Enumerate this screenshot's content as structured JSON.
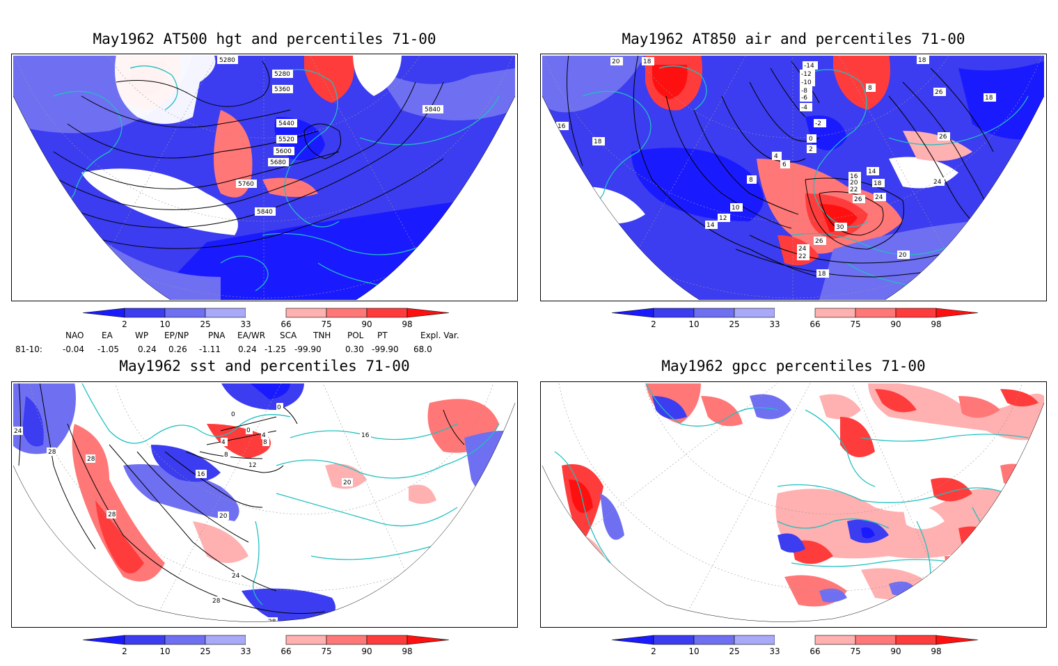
{
  "colors": {
    "blue_98": "#1a1aff",
    "blue_90": "#3c3cf0",
    "blue_75": "#6f6ff2",
    "blue_67": "#a9a9fa",
    "red_67": "#ffb0b0",
    "red_75": "#ff7777",
    "red_90": "#ff3c3c",
    "red_98": "#ff1010",
    "coast": "#20c0c0",
    "contour": "#000000"
  },
  "colorbar": {
    "ticks": [
      "2",
      "10",
      "25",
      "33",
      "66",
      "75",
      "90",
      "98"
    ]
  },
  "panels": [
    {
      "id": "at500",
      "title": "May1962 AT500 hgt and percentiles 71-00",
      "contour_labels": [
        "5280",
        "5280",
        "5360",
        "5440",
        "5520",
        "5600",
        "5680",
        "5760",
        "5840",
        "5840"
      ]
    },
    {
      "id": "at850",
      "title": "May1962 AT850 air and percentiles 71-00",
      "contour_labels": [
        "20",
        "18",
        "16",
        "18",
        "8",
        "10",
        "12",
        "14",
        "4",
        "6",
        "2",
        "0",
        "-2",
        "-4",
        "-6",
        "-8",
        "-10",
        "-12",
        "-14",
        "8",
        "14",
        "16",
        "18",
        "22",
        "20",
        "26",
        "24",
        "30",
        "26",
        "24",
        "22",
        "20",
        "18",
        "24",
        "26",
        "26",
        "18",
        "18"
      ]
    },
    {
      "id": "sst",
      "title": "May1962 sst and percentiles 71-00",
      "contour_labels": [
        "24",
        "28",
        "28",
        "28",
        "0",
        "0",
        "4",
        "4",
        "8",
        "8",
        "12",
        "16",
        "20",
        "24",
        "28",
        "28",
        "20",
        "16",
        "0"
      ]
    },
    {
      "id": "gpcc",
      "title": "May1962 gpcc percentiles 71-00",
      "contour_labels": []
    }
  ],
  "teleconnections": {
    "headers": [
      "NAO",
      "EA",
      "WP",
      "EP/NP",
      "PNA",
      "EA/WR",
      "SCA",
      "TNH",
      "POL",
      "PT",
      "Expl. Var."
    ],
    "row_label": "81-10:",
    "values": [
      "-0.04",
      "-1.05",
      "0.24",
      "0.26",
      "-1.11",
      "0.24",
      "-1.25",
      "-99.90",
      "0.30",
      "-99.90",
      "68.0"
    ]
  }
}
